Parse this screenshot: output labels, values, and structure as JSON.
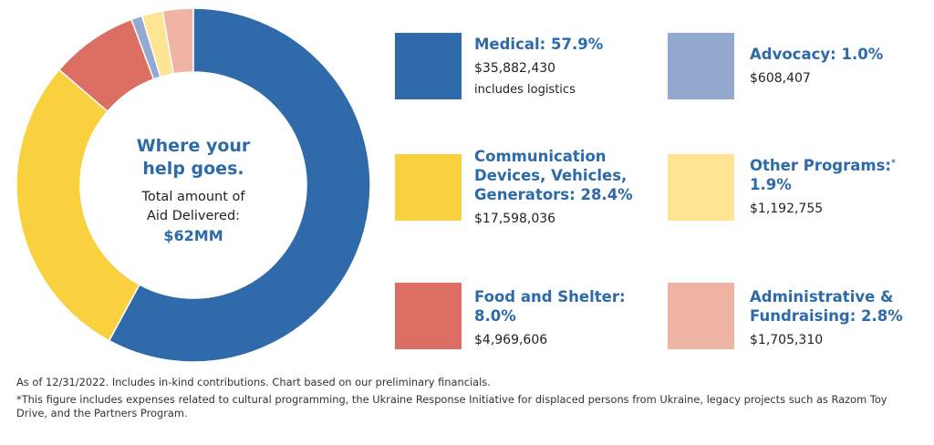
{
  "chart_data": {
    "type": "donut",
    "center": {
      "title_line1": "Where your",
      "title_line2": "help goes.",
      "sub_line1": "Total amount of",
      "sub_line2": "Aid Delivered:",
      "total": "$62MM"
    },
    "categories": [
      "Medical",
      "Communication Devices, Vehicles, Generators",
      "Food and Shelter",
      "Advocacy",
      "Other Programs",
      "Administrative & Fundraising"
    ],
    "values": [
      57.9,
      28.4,
      8.0,
      1.0,
      1.9,
      2.8
    ],
    "colors": [
      "#2f6aaa",
      "#f9d13e",
      "#dc6e64",
      "#94a9d0",
      "#fde594",
      "#f0b4a4"
    ],
    "legend": [
      {
        "name_line1": "Medical: 57.9%",
        "name_line2": "",
        "name_line3": "",
        "amount": "$35,882,430",
        "note": "includes logistics"
      },
      {
        "name_line1": "Communication",
        "name_line2": "Devices, Vehicles,",
        "name_line3": "Generators: 28.4%",
        "amount": "$17,598,036",
        "note": ""
      },
      {
        "name_line1": "Food and Shelter:",
        "name_line2": "8.0%",
        "name_line3": "",
        "amount": "$4,969,606",
        "note": ""
      },
      {
        "name_line1": "Advocacy: 1.0%",
        "name_line2": "",
        "name_line3": "",
        "amount": "$608,407",
        "note": ""
      },
      {
        "name_line1": "Other Programs:",
        "name_line2": "1.9%",
        "name_line3": "",
        "amount": "$1,192,755",
        "note": "",
        "marker": "*"
      },
      {
        "name_line1": "Administrative &",
        "name_line2": "Fundraising: 2.8%",
        "name_line3": "",
        "amount": "$1,705,310",
        "note": ""
      }
    ]
  },
  "footer": {
    "line1": "As of 12/31/2022. Includes in-kind contributions. Chart based on our preliminary financials.",
    "line2": "*This figure includes expenses related to cultural programming, the Ukraine Response Initiative for displaced persons from Ukraine, legacy projects such as Razom Toy Drive, and the Partners Program."
  }
}
